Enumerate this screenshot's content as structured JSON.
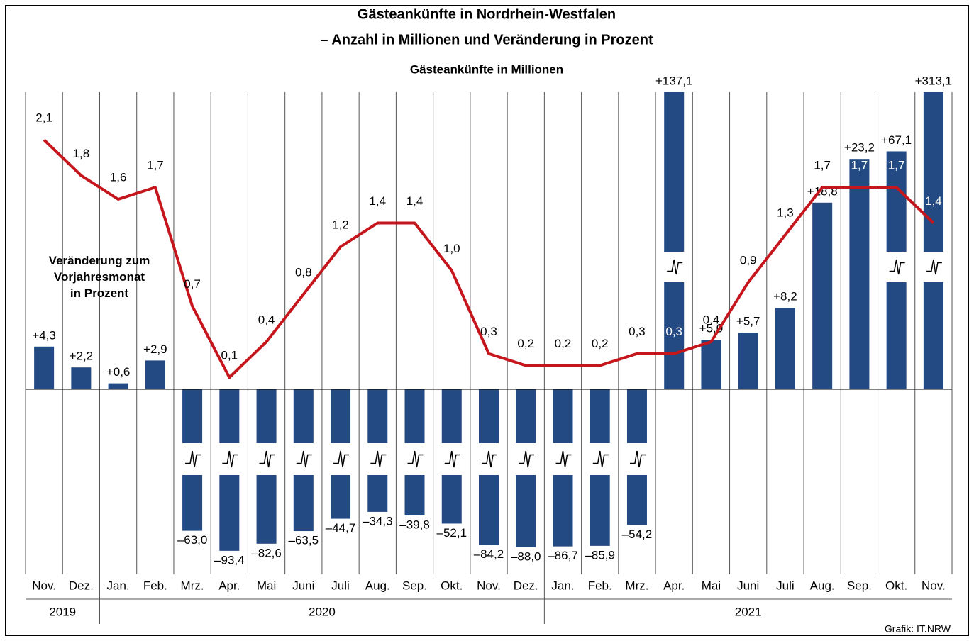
{
  "chart_data": {
    "type": "combo",
    "title": "Gästeankünfte in Nordrhein-Westfalen",
    "subtitle": "– Anzahl in Millionen und Veränderung in Prozent",
    "source": "Grafik: IT.NRW",
    "category_groups": [
      {
        "label": "2019",
        "categories": [
          "Nov.",
          "Dez."
        ]
      },
      {
        "label": "2020",
        "categories": [
          "Jan.",
          "Feb.",
          "Mrz.",
          "Apr.",
          "Mai",
          "Juni",
          "Juli",
          "Aug.",
          "Sep.",
          "Okt.",
          "Nov.",
          "Dez."
        ]
      },
      {
        "label": "2021",
        "categories": [
          "Jan.",
          "Feb.",
          "Mrz.",
          "Apr.",
          "Mai",
          "Juni",
          "Juli",
          "Aug.",
          "Sep.",
          "Okt.",
          "Nov."
        ]
      }
    ],
    "series": [
      {
        "name": "Veränderung zum\nVorjahresmonat\nin Prozent",
        "type": "bar",
        "color": "#234a82",
        "values": [
          4.3,
          2.2,
          0.6,
          2.9,
          -63.0,
          -93.4,
          -82.6,
          -63.5,
          -44.7,
          -34.3,
          -39.8,
          -52.1,
          -84.2,
          -88.0,
          -86.7,
          -85.9,
          -54.2,
          137.1,
          5.0,
          5.7,
          8.2,
          18.8,
          23.2,
          67.1,
          313.1
        ],
        "value_labels": [
          "+4,3",
          "+2,2",
          "+0,6",
          "+2,9",
          "–63,0",
          "–93,4",
          "–82,6",
          "–63,5",
          "–44,7",
          "–34,3",
          "–39,8",
          "–52,1",
          "–84,2",
          "–88,0",
          "–86,7",
          "–85,9",
          "–54,2",
          "+137,1",
          "+5,0",
          "+5,7",
          "+8,2",
          "+18,8",
          "+23,2",
          "+67,1",
          "+313,1"
        ]
      },
      {
        "name": "Gästeankünfte in Millionen",
        "type": "line",
        "color": "#c4161c",
        "values": [
          2.1,
          1.8,
          1.6,
          1.7,
          0.7,
          0.1,
          0.4,
          0.8,
          1.2,
          1.4,
          1.4,
          1.0,
          0.3,
          0.2,
          0.2,
          0.2,
          0.3,
          0.3,
          0.4,
          0.9,
          1.3,
          1.7,
          1.7,
          1.7,
          1.4
        ],
        "value_labels": [
          "2,1",
          "1,8",
          "1,6",
          "1,7",
          "0,7",
          "0,1",
          "0,4",
          "0,8",
          "1,2",
          "1,4",
          "1,4",
          "1,0",
          "0,3",
          "0,2",
          "0,2",
          "0,2",
          "0,3",
          "0,3",
          "0,4",
          "0,9",
          "1,3",
          "1,7",
          "1,7",
          "1,7",
          "1,4"
        ]
      }
    ]
  }
}
